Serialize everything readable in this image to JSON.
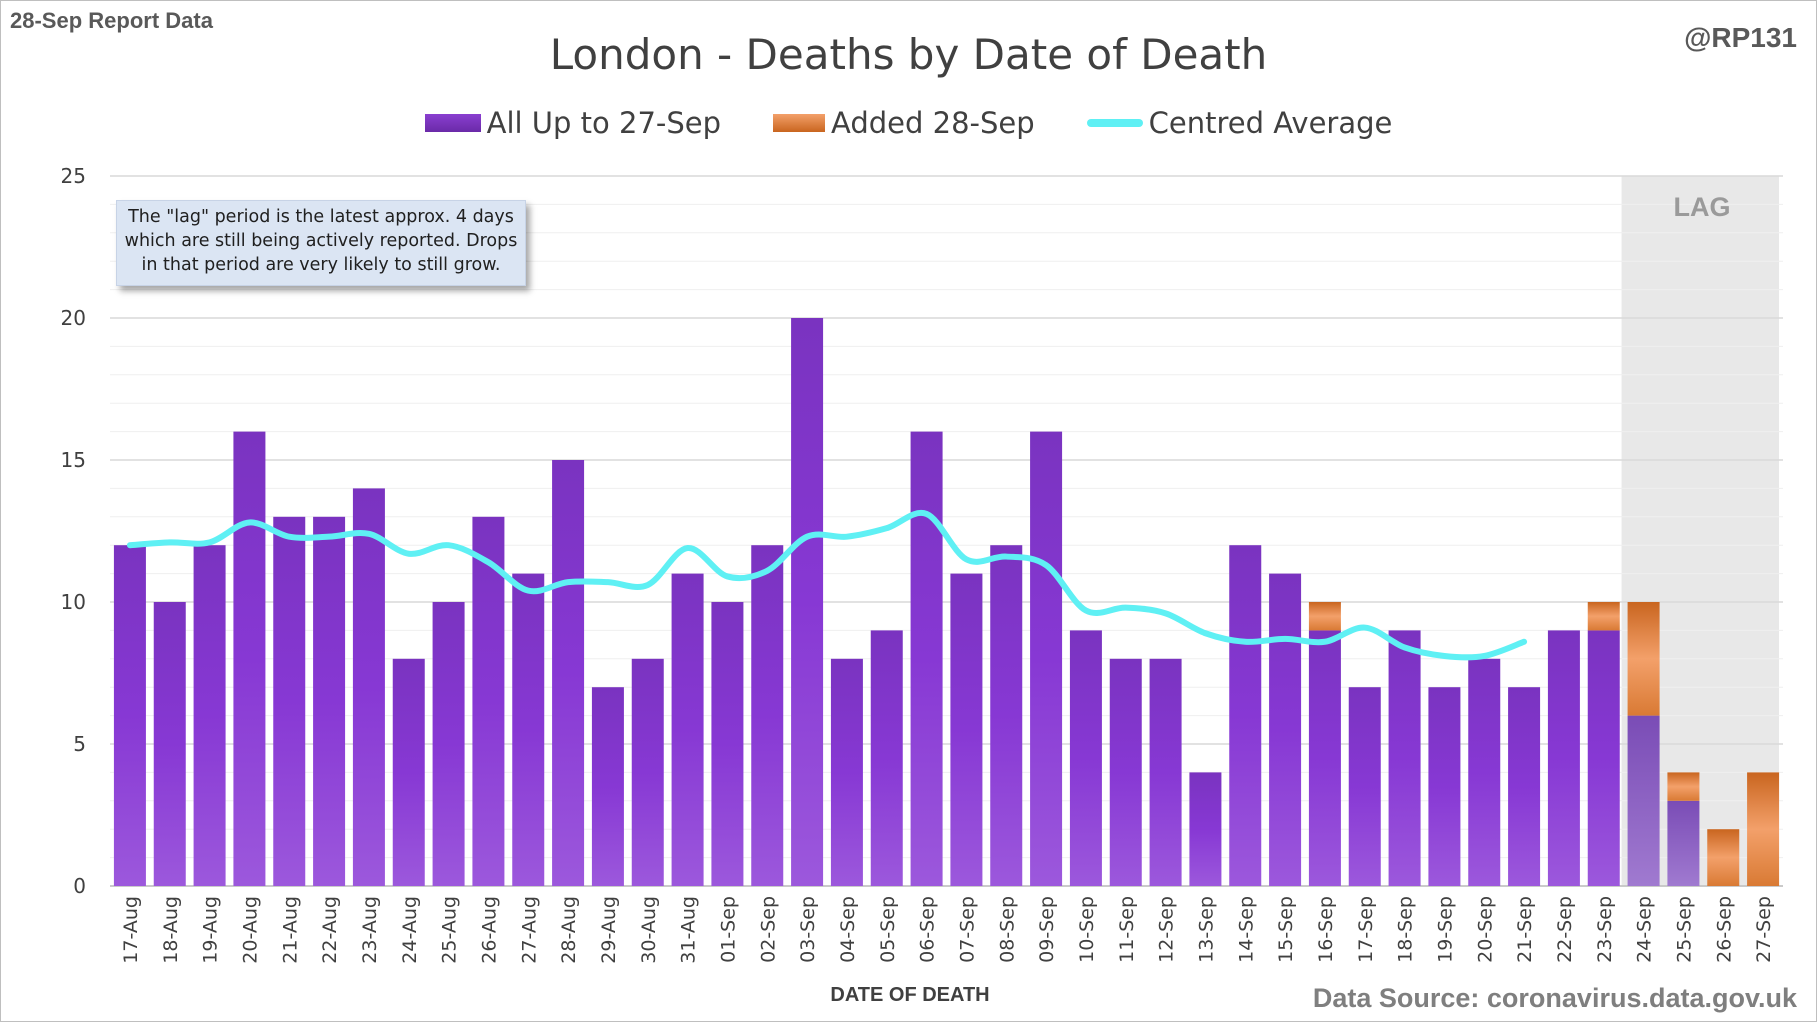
{
  "header": {
    "report_label": "28-Sep Report Data",
    "handle": "@RP131"
  },
  "annotation": {
    "note_lines": [
      "The \"lag\" period is the latest approx. 4 days",
      "which are still being actively reported.  Drops",
      "in that period are very likely to still grow."
    ],
    "lag_label": "LAG",
    "source": "Data Source: coronavirus.data.gov.uk"
  },
  "colors": {
    "purple_top": "#8a3fd0",
    "purple_bottom": "#6a2aa8",
    "orange_top": "#f3a06a",
    "orange_bottom": "#c9651f",
    "average_line": "#5ff0f4",
    "lag_shade": "#e8e8e8",
    "grid": "#d9d9d9"
  },
  "chart_data": {
    "type": "bar",
    "title": "London - Deaths by Date of Death",
    "xlabel": "DATE OF DEATH",
    "ylabel": "",
    "ylim": [
      0,
      25
    ],
    "yticks": [
      0,
      5,
      10,
      15,
      20,
      25
    ],
    "grid": true,
    "stacked": true,
    "legend_position": "top",
    "categories": [
      "17-Aug",
      "18-Aug",
      "19-Aug",
      "20-Aug",
      "21-Aug",
      "22-Aug",
      "23-Aug",
      "24-Aug",
      "25-Aug",
      "26-Aug",
      "27-Aug",
      "28-Aug",
      "29-Aug",
      "30-Aug",
      "31-Aug",
      "01-Sep",
      "02-Sep",
      "03-Sep",
      "04-Sep",
      "05-Sep",
      "06-Sep",
      "07-Sep",
      "08-Sep",
      "09-Sep",
      "10-Sep",
      "11-Sep",
      "12-Sep",
      "13-Sep",
      "14-Sep",
      "15-Sep",
      "16-Sep",
      "17-Sep",
      "18-Sep",
      "19-Sep",
      "20-Sep",
      "21-Sep",
      "22-Sep",
      "23-Sep",
      "24-Sep",
      "25-Sep",
      "26-Sep",
      "27-Sep"
    ],
    "series": [
      {
        "name": "All Up to 27-Sep",
        "values": [
          12,
          10,
          12,
          16,
          13,
          13,
          14,
          8,
          10,
          13,
          11,
          15,
          7,
          8,
          11,
          10,
          12,
          20,
          8,
          9,
          16,
          11,
          12,
          16,
          9,
          8,
          8,
          4,
          12,
          11,
          9,
          7,
          9,
          7,
          8,
          7,
          9,
          9,
          6,
          3,
          0,
          0
        ]
      },
      {
        "name": "Added 28-Sep",
        "values": [
          0,
          0,
          0,
          0,
          0,
          0,
          0,
          0,
          0,
          0,
          0,
          0,
          0,
          0,
          0,
          0,
          0,
          0,
          0,
          0,
          0,
          0,
          0,
          0,
          0,
          0,
          0,
          0,
          0,
          0,
          1,
          0,
          0,
          0,
          0,
          0,
          0,
          1,
          4,
          1,
          2,
          4
        ]
      },
      {
        "name": "Centred Average",
        "type": "line",
        "values": [
          12.0,
          12.1,
          12.1,
          12.8,
          12.3,
          12.3,
          12.4,
          11.7,
          12.0,
          11.4,
          10.4,
          10.7,
          10.7,
          10.6,
          11.9,
          10.9,
          11.1,
          12.3,
          12.3,
          12.6,
          13.1,
          11.5,
          11.6,
          11.3,
          9.7,
          9.8,
          9.6,
          8.9,
          8.6,
          8.7,
          8.6,
          9.1,
          8.4,
          8.1,
          8.1,
          8.6,
          null,
          null,
          null,
          null,
          null,
          null
        ]
      }
    ],
    "lag_period": [
      "24-Sep",
      "27-Sep"
    ]
  }
}
